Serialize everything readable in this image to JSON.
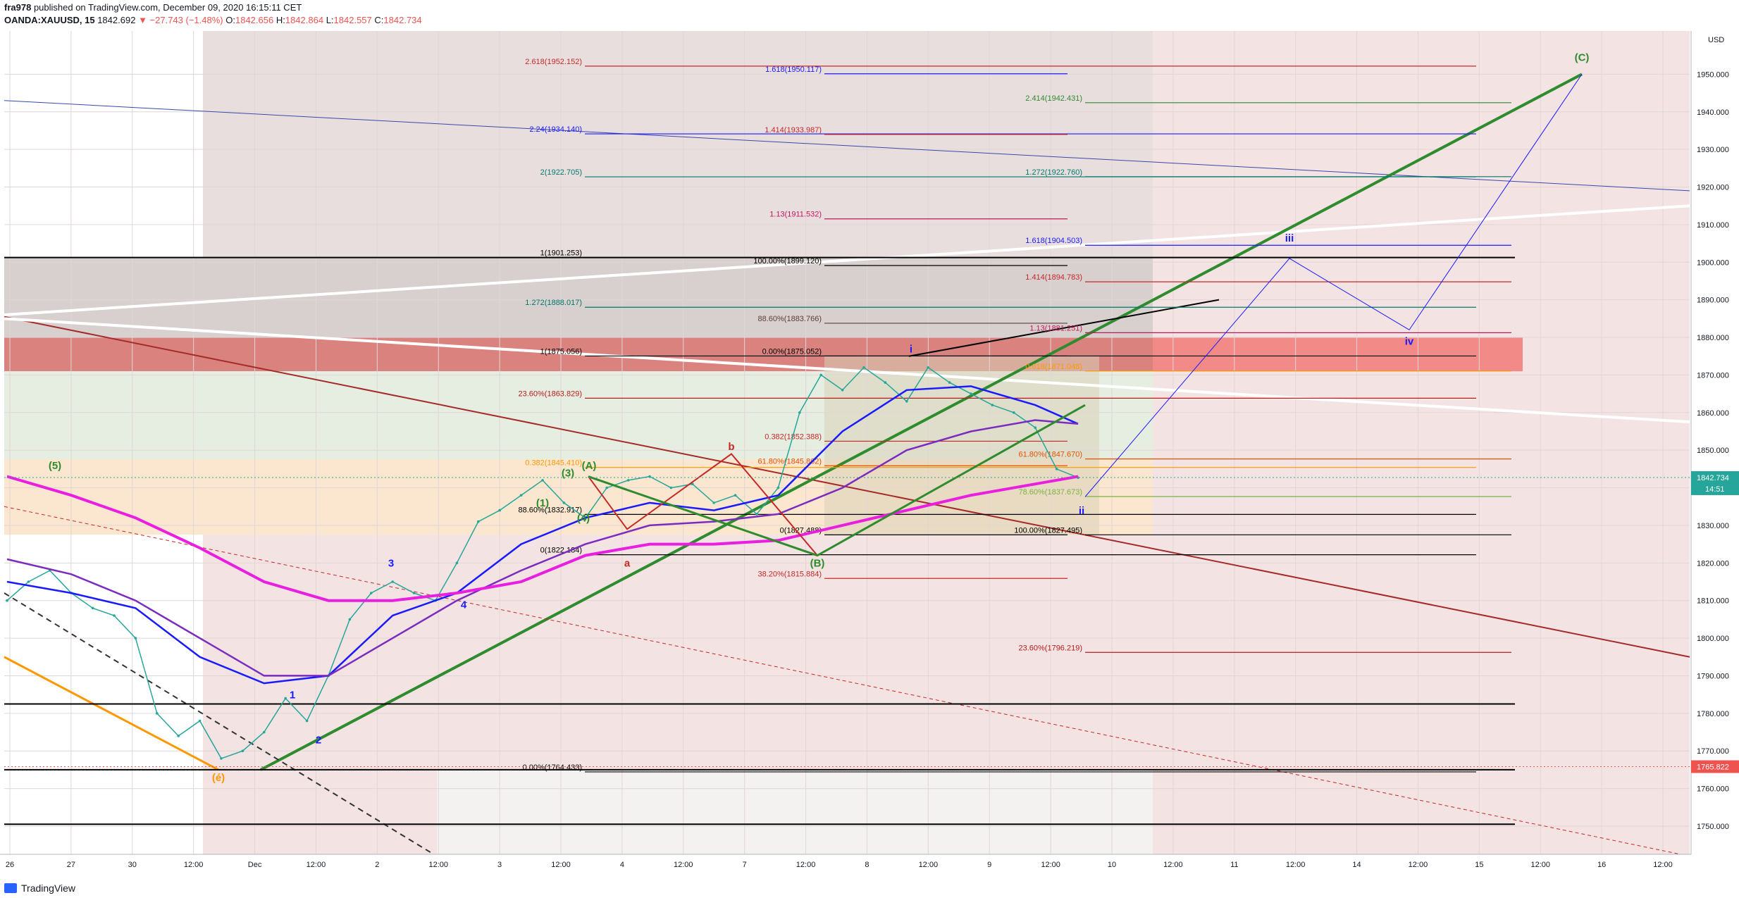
{
  "header": {
    "author": "fra978",
    "published": "published on TradingView.com, December 09, 2020 16:15:11 CET",
    "symbol": "OANDA:XAUUSD, 15",
    "price": "1842.692",
    "change": "▼ −27.743 (−1.48%)",
    "o": "1842.656",
    "h": "1842.864",
    "l": "1842.557",
    "c": "1842.734"
  },
  "footer": {
    "brand": "TradingView"
  },
  "colors": {
    "bull": "#26a69a",
    "bear": "#ef5350",
    "blue": "#1a1aff",
    "magenta": "#e91ee0",
    "green": "#2e8b2e",
    "orange": "#ff9800"
  },
  "chart_data": {
    "type": "line",
    "title": "",
    "currency": "USD",
    "ylim": [
      1742.5,
      1961.5
    ],
    "yticks": [
      1750,
      1760,
      1770,
      1780,
      1790,
      1800,
      1810,
      1820,
      1830,
      1840,
      1850,
      1860,
      1870,
      1880,
      1890,
      1900,
      1910,
      1920,
      1930,
      1940,
      1950
    ],
    "ytick_labels": [
      "1750.000",
      "1760.000",
      "1770.000",
      "1780.000",
      "1790.000",
      "1800.000",
      "1810.000",
      "1820.000",
      "1830.000",
      "1840.000",
      "1850.000",
      "1860.000",
      "1870.000",
      "1880.000",
      "1890.000",
      "1900.000",
      "1910.000",
      "1920.000",
      "1930.000",
      "1940.000",
      "1950.000"
    ],
    "xticks": [
      "26",
      "27",
      "30",
      "12:00",
      "Dec",
      "12:00",
      "2",
      "12:00",
      "3",
      "12:00",
      "4",
      "12:00",
      "7",
      "12:00",
      "8",
      "12:00",
      "9",
      "12:00",
      "10",
      "12:00",
      "11",
      "12:00",
      "14",
      "12:00",
      "15",
      "12:00",
      "16",
      "12:00"
    ],
    "price_badges": [
      {
        "label": "1842.734",
        "sub": "14:51",
        "value": 1842.734,
        "color": "#26a69a"
      },
      {
        "label": "1765.822",
        "value": 1765.822,
        "color": "#ef5350"
      }
    ],
    "series": [
      {
        "name": "",
        "role": "price",
        "color": "#26a69a",
        "points": [
          [
            0,
            1810
          ],
          [
            1,
            1815
          ],
          [
            2,
            1818
          ],
          [
            3,
            1812
          ],
          [
            4,
            1808
          ],
          [
            5,
            1806
          ],
          [
            6,
            1800
          ],
          [
            7,
            1780
          ],
          [
            8,
            1774
          ],
          [
            9,
            1778
          ],
          [
            10,
            1768
          ],
          [
            11,
            1770
          ],
          [
            12,
            1775
          ],
          [
            13,
            1784
          ],
          [
            14,
            1778
          ],
          [
            15,
            1790
          ],
          [
            16,
            1805
          ],
          [
            17,
            1812
          ],
          [
            18,
            1815
          ],
          [
            19,
            1812
          ],
          [
            20,
            1810
          ],
          [
            21,
            1820
          ],
          [
            22,
            1831
          ],
          [
            23,
            1834
          ],
          [
            24,
            1838
          ],
          [
            25,
            1842
          ],
          [
            26,
            1836
          ],
          [
            27,
            1832
          ],
          [
            28,
            1840
          ],
          [
            29,
            1842
          ],
          [
            30,
            1843
          ],
          [
            31,
            1840
          ],
          [
            32,
            1841
          ],
          [
            33,
            1836
          ],
          [
            34,
            1838
          ],
          [
            35,
            1833
          ],
          [
            36,
            1840
          ],
          [
            37,
            1860
          ],
          [
            38,
            1870
          ],
          [
            39,
            1866
          ],
          [
            40,
            1872
          ],
          [
            41,
            1868
          ],
          [
            42,
            1863
          ],
          [
            43,
            1872
          ],
          [
            44,
            1868
          ],
          [
            45,
            1865
          ],
          [
            46,
            1862
          ],
          [
            47,
            1860
          ],
          [
            48,
            1856
          ],
          [
            49,
            1845
          ],
          [
            50,
            1842.7
          ]
        ]
      },
      {
        "name": "",
        "role": "ma-blue",
        "color": "#1a1aff",
        "points": [
          [
            0,
            1815
          ],
          [
            3,
            1812
          ],
          [
            6,
            1808
          ],
          [
            9,
            1795
          ],
          [
            12,
            1788
          ],
          [
            15,
            1790
          ],
          [
            18,
            1806
          ],
          [
            21,
            1812
          ],
          [
            24,
            1825
          ],
          [
            27,
            1832
          ],
          [
            30,
            1836
          ],
          [
            33,
            1834
          ],
          [
            36,
            1838
          ],
          [
            39,
            1855
          ],
          [
            42,
            1866
          ],
          [
            45,
            1867
          ],
          [
            48,
            1862
          ],
          [
            50,
            1857
          ]
        ]
      },
      {
        "name": "",
        "role": "ma-purple",
        "color": "#7b2cbf",
        "points": [
          [
            0,
            1821
          ],
          [
            3,
            1817
          ],
          [
            6,
            1810
          ],
          [
            9,
            1800
          ],
          [
            12,
            1790
          ],
          [
            15,
            1790
          ],
          [
            18,
            1800
          ],
          [
            21,
            1810
          ],
          [
            24,
            1818
          ],
          [
            27,
            1825
          ],
          [
            30,
            1830
          ],
          [
            33,
            1831
          ],
          [
            36,
            1833
          ],
          [
            39,
            1840
          ],
          [
            42,
            1850
          ],
          [
            45,
            1855
          ],
          [
            48,
            1858
          ],
          [
            50,
            1857
          ]
        ]
      },
      {
        "name": "",
        "role": "ma-magenta",
        "color": "#e91ee0",
        "points": [
          [
            0,
            1843
          ],
          [
            3,
            1838
          ],
          [
            6,
            1832
          ],
          [
            9,
            1824
          ],
          [
            12,
            1815
          ],
          [
            15,
            1810
          ],
          [
            18,
            1810
          ],
          [
            21,
            1812
          ],
          [
            24,
            1815
          ],
          [
            27,
            1822
          ],
          [
            30,
            1825
          ],
          [
            33,
            1825
          ],
          [
            36,
            1826
          ],
          [
            39,
            1830
          ],
          [
            42,
            1834
          ],
          [
            45,
            1838
          ],
          [
            48,
            1841
          ],
          [
            50,
            1843
          ]
        ]
      }
    ],
    "levels": [
      {
        "label": "2.618(1952.152)",
        "value": 1952.152,
        "color": "#c62828"
      },
      {
        "label": "1.618(1950.117)",
        "value": 1950.117,
        "color": "#1a1aff"
      },
      {
        "label": "2.414(1942.431)",
        "value": 1942.431,
        "color": "#2e8b2e"
      },
      {
        "label": "2.24(1934.140)",
        "value": 1934.14,
        "color": "#1a1aff"
      },
      {
        "label": "1.414(1933.987)",
        "value": 1933.987,
        "color": "#c62828"
      },
      {
        "label": "1.272(1922.760)",
        "value": 1922.76,
        "color": "#00796b"
      },
      {
        "label": "2(1922.705)",
        "value": 1922.705,
        "color": "#00796b"
      },
      {
        "label": "1.13(1911.532)",
        "value": 1911.532,
        "color": "#c2185b"
      },
      {
        "label": "1.618(1904.503)",
        "value": 1904.503,
        "color": "#1a1aff"
      },
      {
        "label": "1(1901.253)",
        "value": 1901.253,
        "color": "#000000"
      },
      {
        "label": "100.00%(1899.120)",
        "value": 1899.12,
        "color": "#000000"
      },
      {
        "label": "1.414(1894.783)",
        "value": 1894.783,
        "color": "#c62828"
      },
      {
        "label": "1.272(1888.017)",
        "value": 1888.017,
        "color": "#00796b"
      },
      {
        "label": "88.60%(1883.766)",
        "value": 1883.766,
        "color": "#5d4037"
      },
      {
        "label": "1.13(1881.251)",
        "value": 1881.251,
        "color": "#c2185b"
      },
      {
        "label": "1(1875.056)",
        "value": 1875.056,
        "color": "#000000"
      },
      {
        "label": "0.00%(1875.052)",
        "value": 1875.052,
        "color": "#000000"
      },
      {
        "label": "0.618(1871.048)",
        "value": 1871.048,
        "color": "#ff9800"
      },
      {
        "label": "23.60%(1863.829)",
        "value": 1863.829,
        "color": "#b71c1c"
      },
      {
        "label": "0.382(1852.388)",
        "value": 1852.388,
        "color": "#c62828"
      },
      {
        "label": "61.80%(1847.670)",
        "value": 1847.67,
        "color": "#e65100"
      },
      {
        "label": "0.382(1845.410)",
        "value": 1845.41,
        "color": "#ff9800"
      },
      {
        "label": "61.80%(1845.862)",
        "value": 1845.862,
        "color": "#e65100"
      },
      {
        "label": "78.60%(1837.673)",
        "value": 1837.673,
        "color": "#7cb342"
      },
      {
        "label": "88.60%(1832.917)",
        "value": 1832.917,
        "color": "#000000"
      },
      {
        "label": "0(1827.488)",
        "value": 1827.488,
        "color": "#000000"
      },
      {
        "label": "100.00%(1827.495)",
        "value": 1827.495,
        "color": "#000000"
      },
      {
        "label": "0(1822.184)",
        "value": 1822.184,
        "color": "#000000"
      },
      {
        "label": "38.20%(1815.884)",
        "value": 1815.884,
        "color": "#c62828"
      },
      {
        "label": "23.60%(1796.219)",
        "value": 1796.219,
        "color": "#b71c1c"
      },
      {
        "label": "0.00%(1764.433)",
        "value": 1764.433,
        "color": "#000000"
      }
    ],
    "wave_labels": [
      {
        "label": "(C)",
        "value": 1953.5,
        "color": "#2e8b2e"
      },
      {
        "label": "(A)",
        "value": 1845,
        "color": "#2e8b2e"
      },
      {
        "label": "(B)",
        "value": 1819,
        "color": "#2e8b2e"
      },
      {
        "label": "b",
        "value": 1850,
        "color": "#c62828"
      },
      {
        "label": "a",
        "value": 1819,
        "color": "#c62828"
      },
      {
        "label": "i",
        "value": 1876,
        "color": "#1a1aff"
      },
      {
        "label": "ii",
        "value": 1833,
        "color": "#1a1aff"
      },
      {
        "label": "iii",
        "value": 1905.5,
        "color": "#1a1aff"
      },
      {
        "label": "iv",
        "value": 1878,
        "color": "#1a1aff"
      },
      {
        "label": "1",
        "value": 1784,
        "color": "#1a1aff"
      },
      {
        "label": "2",
        "value": 1772,
        "color": "#1a1aff"
      },
      {
        "label": "3",
        "value": 1819,
        "color": "#1a1aff"
      },
      {
        "label": "4",
        "value": 1808,
        "color": "#1a1aff"
      },
      {
        "label": "(1)",
        "value": 1835,
        "color": "#2e8b2e"
      },
      {
        "label": "(3)",
        "value": 1843,
        "color": "#2e8b2e"
      },
      {
        "label": "(4)",
        "value": 1831,
        "color": "#2e8b2e"
      },
      {
        "label": "(5)",
        "value": 1845,
        "color": "#2e8b2e"
      },
      {
        "label": "(é)",
        "value": 1762,
        "color": "#ff9800"
      }
    ],
    "grid": true,
    "legend": "none"
  }
}
